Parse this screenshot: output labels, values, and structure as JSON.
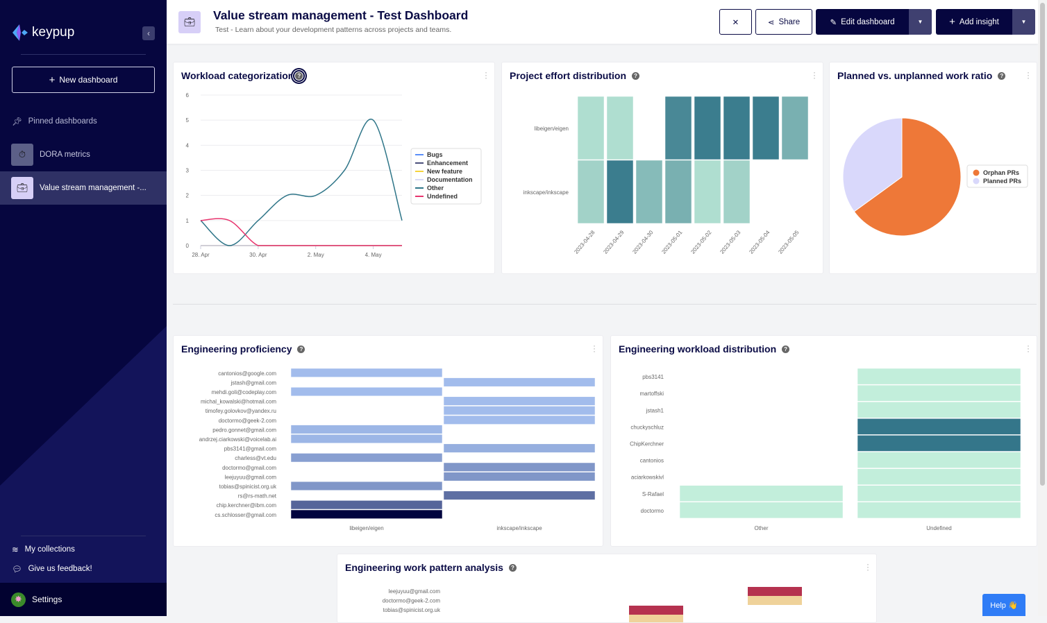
{
  "sidebar": {
    "logo_text": "keypup",
    "new_dashboard_label": "New dashboard",
    "pinned_label": "Pinned dashboards",
    "items": [
      {
        "label": "DORA metrics",
        "icon": "stopwatch-icon",
        "icon_bg": "#5c6088",
        "active": false
      },
      {
        "label": "Value stream management -...",
        "icon": "briefcase-icon",
        "icon_bg": "#d7cff7",
        "active": true
      }
    ],
    "my_collections": "My collections",
    "feedback": "Give us feedback!",
    "settings": "Settings"
  },
  "header": {
    "title": "Value stream management - Test Dashboard",
    "subtitle": "Test - Learn about your development patterns across projects and teams.",
    "share_label": "Share",
    "edit_label": "Edit dashboard",
    "add_insight_label": "Add insight"
  },
  "help_label": "Help 👋",
  "colors": {
    "navy": "#06063f",
    "accent": "#2f7cf6"
  },
  "chart_data": [
    {
      "type": "line",
      "title": "Workload categorization",
      "x": [
        "28. Apr",
        "29. Apr",
        "30. Apr",
        "1. May",
        "2. May",
        "3. May",
        "4. May",
        "5. May"
      ],
      "xticks": [
        "28. Apr",
        "30. Apr",
        "2. May",
        "4. May"
      ],
      "yticks": [
        "0",
        "1",
        "2",
        "3",
        "4",
        "5",
        "6"
      ],
      "ylim": [
        0,
        6
      ],
      "grid": true,
      "legend_position": "right",
      "series": [
        {
          "name": "Bugs",
          "color": "#5b8ff9",
          "values": [
            0,
            0,
            0,
            0,
            0,
            0,
            0,
            0
          ]
        },
        {
          "name": "Enhancement",
          "color": "#4a4f7a",
          "values": [
            0,
            0,
            0,
            0,
            0,
            0,
            0,
            0
          ]
        },
        {
          "name": "New feature",
          "color": "#f5d33c",
          "values": [
            0,
            0,
            0,
            0,
            0,
            0,
            0,
            0
          ]
        },
        {
          "name": "Documentation",
          "color": "#d8d9f5",
          "values": [
            0,
            0,
            0,
            0,
            0,
            0,
            0,
            0
          ]
        },
        {
          "name": "Other",
          "color": "#2e7588",
          "values": [
            1,
            0,
            1,
            2,
            2,
            3,
            5,
            1
          ]
        },
        {
          "name": "Undefined",
          "color": "#e8356e",
          "values": [
            1,
            1,
            0,
            0,
            0,
            0,
            0,
            0
          ]
        }
      ]
    },
    {
      "type": "heatmap",
      "title": "Project effort distribution",
      "rows": [
        "libeigen/eigen",
        "inkscape/inkscape"
      ],
      "columns": [
        "2023-04-28",
        "2023-04-29",
        "2023-04-30",
        "2023-05-01",
        "2023-05-02",
        "2023-05-03",
        "2023-05-04",
        "2023-05-05"
      ],
      "levels": [
        [
          0.1,
          0.1,
          null,
          0.85,
          0.95,
          0.95,
          0.95,
          0.5
        ],
        [
          0.2,
          0.95,
          0.4,
          0.5,
          0.1,
          0.2,
          null,
          null
        ]
      ],
      "color_low": "#bde9d8",
      "color_high": "#34778a"
    },
    {
      "type": "pie",
      "title": "Planned vs. unplanned work ratio",
      "slices": [
        {
          "name": "Orphan PRs",
          "fraction": 0.65,
          "color": "#ee7838"
        },
        {
          "name": "Planned PRs",
          "fraction": 0.35,
          "color": "#d9d8fb"
        }
      ],
      "legend_position": "right"
    },
    {
      "type": "heatmap",
      "title": "Engineering proficiency",
      "rows": [
        "cantonios@google.com",
        "jstash@gmail.com",
        "mehdi.goli@codeplay.com",
        "michal_kowalski@hotmail.com",
        "timofey.golovkov@yandex.ru",
        "doctormo@geek-2.com",
        "pedro.gonnet@gmail.com",
        "andrzej.ciarkowski@voicelab.ai",
        "pbs3141@gmail.com",
        "charless@vt.edu",
        "doctormo@gmail.com",
        "leejuyuu@gmail.com",
        "tobias@spinicist.org.uk",
        "rs@rs-math.net",
        "chip.kerchner@ibm.com",
        "cs.schlosser@gmail.com"
      ],
      "columns": [
        "libeigen/eigen",
        "inkscape/inkscape"
      ],
      "levels": [
        [
          0.05,
          null
        ],
        [
          null,
          0.05
        ],
        [
          0.05,
          null
        ],
        [
          null,
          0.05
        ],
        [
          null,
          0.05
        ],
        [
          null,
          0.05
        ],
        [
          0.08,
          null
        ],
        [
          0.08,
          null
        ],
        [
          null,
          0.12
        ],
        [
          0.2,
          null
        ],
        [
          null,
          0.25
        ],
        [
          null,
          0.25
        ],
        [
          0.25,
          null
        ],
        [
          null,
          0.45
        ],
        [
          0.5,
          null
        ],
        [
          1,
          null
        ]
      ],
      "color_low": "#aac6f5",
      "color_high": "#01043f"
    },
    {
      "type": "heatmap",
      "title": "Engineering workload distribution",
      "rows": [
        "pbs3141",
        "martoffski",
        "jstash1",
        "chuckyschluz",
        "ChipKerchner",
        "cantonios",
        "aciarkowskivl",
        "S-Rafael",
        "doctormo"
      ],
      "columns": [
        "Other",
        "Undefined"
      ],
      "levels": [
        [
          null,
          0
        ],
        [
          null,
          0
        ],
        [
          null,
          0
        ],
        [
          null,
          1
        ],
        [
          null,
          1
        ],
        [
          null,
          0
        ],
        [
          null,
          0
        ],
        [
          0,
          0
        ],
        [
          0,
          0
        ]
      ],
      "color_low": "#c2eedb",
      "color_high": "#34768a"
    },
    {
      "type": "bar",
      "title": "Engineering work pattern analysis",
      "rows": [
        "leejuyuu@gmail.com",
        "doctormo@geek-2.com",
        "tobias@spinicist.org.uk"
      ],
      "segment_colors": [
        "#b5324f",
        "#efd29a"
      ]
    }
  ]
}
